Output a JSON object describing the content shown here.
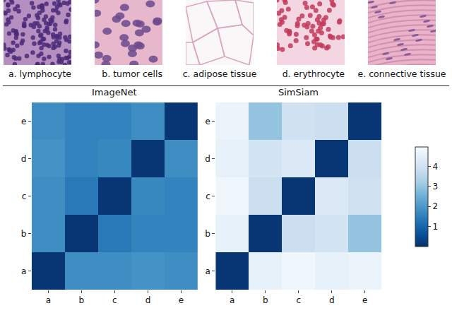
{
  "panels": [
    "a. lymphocyte",
    "b. tumor cells",
    "c. adipose tissue",
    "d. erythrocyte",
    "e. connective tissue"
  ],
  "colorbar": {
    "range": [
      0,
      5
    ],
    "ticks": [
      1,
      2,
      3,
      4
    ]
  },
  "chart_data": [
    {
      "type": "heatmap",
      "title": "ImageNet",
      "x": [
        "a",
        "b",
        "c",
        "d",
        "e"
      ],
      "y": [
        "a",
        "b",
        "c",
        "d",
        "e"
      ],
      "values": [
        [
          0.1,
          1.8,
          1.8,
          1.9,
          1.8
        ],
        [
          1.8,
          0.1,
          1.4,
          1.6,
          1.6
        ],
        [
          1.8,
          1.4,
          0.1,
          1.7,
          1.6
        ],
        [
          1.9,
          1.6,
          1.7,
          0.1,
          1.8
        ],
        [
          1.8,
          1.6,
          1.6,
          1.8,
          0.1
        ]
      ]
    },
    {
      "type": "heatmap",
      "title": "SimSiam",
      "x": [
        "a",
        "b",
        "c",
        "d",
        "e"
      ],
      "y": [
        "a",
        "b",
        "c",
        "d",
        "e"
      ],
      "values": [
        [
          0.1,
          4.6,
          4.8,
          4.6,
          4.7
        ],
        [
          4.6,
          0.1,
          3.9,
          4.1,
          3.0
        ],
        [
          4.8,
          3.9,
          0.1,
          4.3,
          4.0
        ],
        [
          4.6,
          4.1,
          4.3,
          0.1,
          3.9
        ],
        [
          4.7,
          3.0,
          4.0,
          3.9,
          0.1
        ]
      ]
    }
  ]
}
